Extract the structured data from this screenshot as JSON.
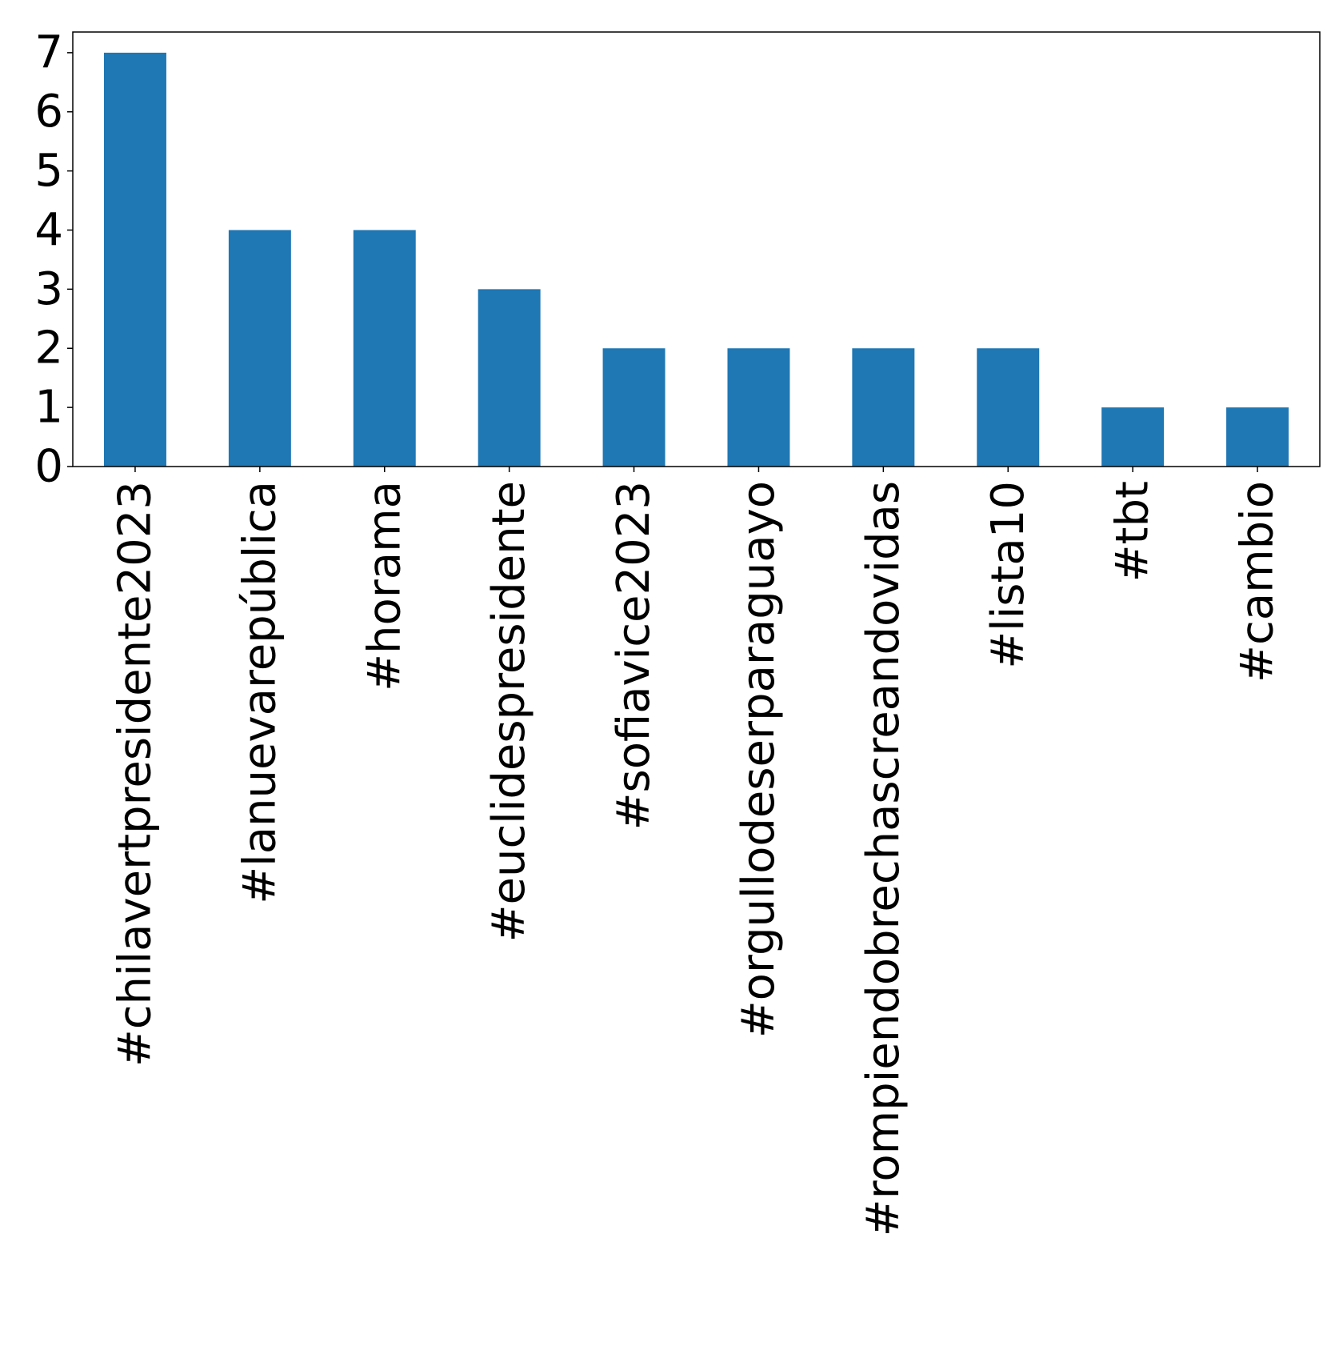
{
  "chart_data": {
    "type": "bar",
    "categories": [
      "#chilavertpresidente2023",
      "#lanuevarepública",
      "#horama",
      "#euclidespresidente",
      "#sofiavice2023",
      "#orgullodeserparaguayo",
      "#rompiendobrechascreandovidas",
      "#lista10",
      "#tbt",
      "#cambio"
    ],
    "values": [
      7,
      4,
      4,
      3,
      2,
      2,
      2,
      2,
      1,
      1
    ],
    "title": "",
    "xlabel": "",
    "ylabel": "",
    "ylim": [
      0,
      7.35
    ],
    "yticks": [
      0,
      1,
      2,
      3,
      4,
      5,
      6,
      7
    ],
    "bar_color": "#1f77b4",
    "grid": false,
    "legend": "none"
  }
}
